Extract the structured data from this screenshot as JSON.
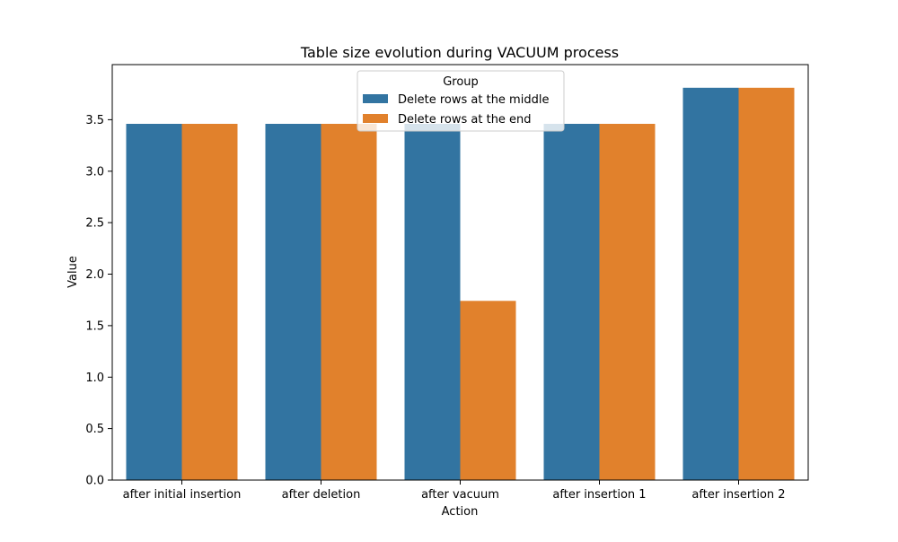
{
  "chart_data": {
    "type": "bar",
    "title": "Table size evolution during VACUUM process",
    "xlabel": "Action",
    "ylabel": "Value",
    "categories": [
      "after initial insertion",
      "after deletion",
      "after vacuum",
      "after insertion 1",
      "after insertion 2"
    ],
    "series": [
      {
        "name": "Delete rows at the middle",
        "color": "#3274a1",
        "values": [
          3.46,
          3.46,
          3.46,
          3.46,
          3.81
        ]
      },
      {
        "name": "Delete rows at the end",
        "color": "#e1812c",
        "values": [
          3.46,
          3.46,
          1.74,
          3.46,
          3.81
        ]
      }
    ],
    "ylim": [
      0,
      4.0
    ],
    "yticks": [
      0.0,
      0.5,
      1.0,
      1.5,
      2.0,
      2.5,
      3.0,
      3.5
    ],
    "ytick_labels": [
      "0.0",
      "0.5",
      "1.0",
      "1.5",
      "2.0",
      "2.5",
      "3.0",
      "3.5"
    ],
    "legend": {
      "title": "Group",
      "placement": "top-center"
    },
    "grid": false
  }
}
